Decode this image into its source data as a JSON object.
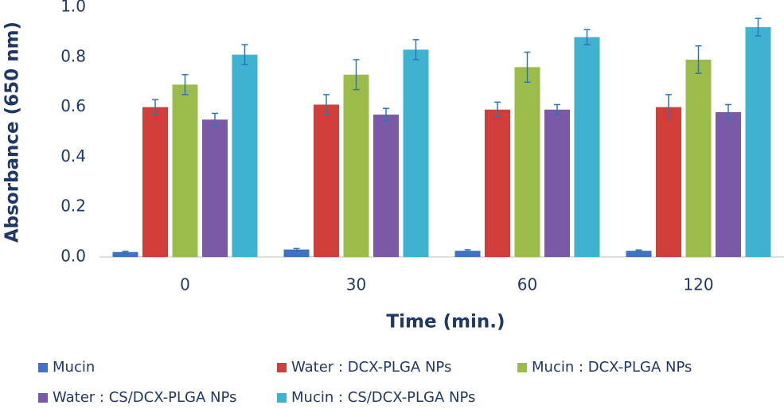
{
  "chart_data": {
    "type": "bar",
    "x_label": "Time (min.)",
    "y_label": "Absorbance (650 nm)",
    "categories": [
      "0",
      "30",
      "60",
      "120"
    ],
    "ylim": [
      0,
      1
    ],
    "yticks": [
      {
        "value": 0,
        "label": "0.0"
      },
      0.2,
      0.4,
      0.6,
      0.8,
      {
        "value": 1,
        "label": "1.0"
      }
    ],
    "series": [
      {
        "name": "Mucin",
        "color": "#3f72c4",
        "values": [
          0.02,
          0.03,
          0.025,
          0.025
        ],
        "errors": [
          0.003,
          0.004,
          0.004,
          0.003
        ]
      },
      {
        "name": "Water : DCX-PLGA NPs",
        "color": "#cf3e38",
        "values": [
          0.6,
          0.61,
          0.59,
          0.6
        ],
        "errors": [
          0.03,
          0.04,
          0.03,
          0.05
        ]
      },
      {
        "name": "Mucin : DCX-PLGA NPs",
        "color": "#9bbb4a",
        "values": [
          0.69,
          0.73,
          0.76,
          0.79
        ],
        "errors": [
          0.04,
          0.06,
          0.06,
          0.055
        ]
      },
      {
        "name": "Water : CS/DCX-PLGA NPs",
        "color": "#7a59a6",
        "values": [
          0.55,
          0.57,
          0.59,
          0.58
        ],
        "errors": [
          0.025,
          0.025,
          0.02,
          0.03
        ]
      },
      {
        "name": "Mucin : CS/DCX-PLGA NPs",
        "color": "#3fb2d2",
        "values": [
          0.81,
          0.83,
          0.88,
          0.92
        ],
        "errors": [
          0.04,
          0.04,
          0.03,
          0.035
        ]
      }
    ]
  }
}
